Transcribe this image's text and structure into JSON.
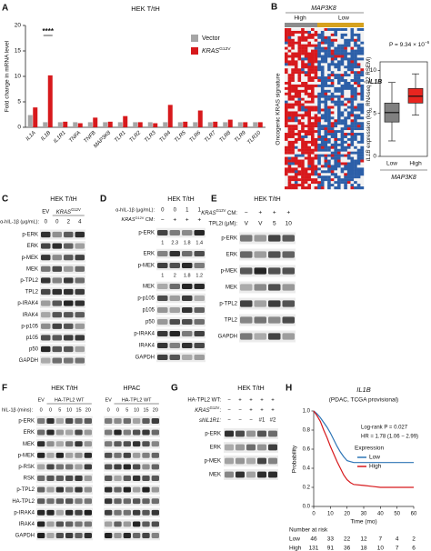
{
  "panel_a": {
    "letter": "A",
    "title": "HEK T/tH",
    "y_label": "Fold change in mRNA level",
    "significance": "****",
    "chart": {
      "type": "bar",
      "categories": [
        "IL1A",
        "IL1B",
        "IL1R1",
        "TNFA",
        "TNFB",
        "MAP3K8",
        "TLR1",
        "TLR2",
        "TLR3",
        "TLR4",
        "TLR5",
        "TLR6",
        "TLR7",
        "TLR8",
        "TLR9",
        "TLR10"
      ],
      "series": [
        {
          "name": "Vector",
          "color": "#a6a6a6",
          "values": [
            2.4,
            1,
            1,
            1,
            1,
            1,
            1,
            1,
            1,
            1,
            1,
            1,
            1,
            1,
            1,
            1
          ]
        },
        {
          "name": "KRAS",
          "name_sup": "G12V",
          "color": "#d7191c",
          "values": [
            3.9,
            10.2,
            1.1,
            0.8,
            1.9,
            1.1,
            2.2,
            1,
            0.8,
            4.4,
            1.1,
            3.3,
            1.1,
            1.5,
            1,
            1
          ]
        }
      ],
      "ylim": [
        0,
        20
      ],
      "yticks": [
        0,
        5,
        10,
        15,
        20
      ]
    }
  },
  "panel_b": {
    "letter": "B",
    "gene": "MAP3K8",
    "groups": [
      "High",
      "Low"
    ],
    "row_label": "IL1B",
    "y_label": "Oncogenic KRAS signature",
    "box": {
      "type": "box",
      "annotation": "P = 9.34 × 10",
      "annotation_sup": "−6",
      "y_label_parts": [
        "IL1B",
        " expression (log",
        "2",
        " RNAseq V2 RSEM)"
      ],
      "x_label": "MAP3K8",
      "categories": [
        "Low",
        "High"
      ],
      "colors": [
        "#808080",
        "#e8251f"
      ],
      "boxes": [
        {
          "whisker_low": 1.8,
          "q1": 4.0,
          "median": 5.1,
          "q3": 6.2,
          "whisker_high": 8.6
        },
        {
          "whisker_low": 4.8,
          "q1": 6.2,
          "median": 7.0,
          "q3": 7.9,
          "whisker_high": 9.6
        }
      ],
      "ylim": [
        0,
        11
      ],
      "yticks": [
        0,
        5,
        10
      ]
    }
  },
  "panel_c": {
    "letter": "C",
    "title": "HEK T/tH",
    "groups": [
      "EV",
      "KRAS"
    ],
    "group_sup": "G12V",
    "treatment_label": "α-hIL-1β (μg/mL):",
    "treatment_values": [
      0,
      0,
      2,
      4
    ],
    "rows": [
      "p-ERK",
      "ERK",
      "p-MEK",
      "MEK",
      "p-TPL2",
      "TPL2",
      "p-IRAK4",
      "IRAK4",
      "p-p105",
      "p105",
      "p50",
      "GAPDH"
    ]
  },
  "panel_d": {
    "letter": "D",
    "title": "HEK T/tH",
    "treatment_label": "α-hIL-1β (μg/mL):",
    "treatment_values": [
      0,
      0,
      1,
      1
    ],
    "cm_label": "KRAS",
    "cm_label_sup": "G12V",
    "cm_label_end": " CM:",
    "cm_values": [
      "−",
      "+",
      "+",
      "+"
    ],
    "rows": [
      "p-ERK",
      "ERK",
      "p-MEK",
      "MEK",
      "p-p105",
      "p105",
      "p50",
      "p-IRAK4",
      "IRAK4",
      "GAPDH"
    ],
    "quant_p_erk": [
      1,
      2.3,
      1.8,
      1.4
    ],
    "quant_p_mek": [
      1,
      2,
      1.8,
      1.2
    ]
  },
  "panel_e": {
    "letter": "E",
    "title": "HEK T/tH",
    "cm_label": "KRAS",
    "cm_label_sup": "G12V",
    "cm_label_end": " CM:",
    "cm_values": [
      "−",
      "+",
      "+",
      "+"
    ],
    "inhibitor_label": "TPL2i (μM):",
    "inhibitor_values": [
      "V",
      "V",
      5,
      10
    ],
    "rows": [
      "p-ERK",
      "ERK",
      "p-MEK",
      "MEK",
      "p-TPL2",
      "TPL2",
      "GAPDH"
    ]
  },
  "panel_f": {
    "letter": "F",
    "cell_lines": [
      "HEK T/tH",
      "HPAC"
    ],
    "groups": [
      "EV",
      "HA-TPL2 WT",
      "EV",
      "HA-TPL2 WT"
    ],
    "treatment_label": "hIL-1β (mins):",
    "treatment_values": [
      [
        0,
        0,
        5,
        10,
        15,
        20
      ],
      [
        0,
        0,
        5,
        10,
        15,
        20
      ]
    ],
    "rows": [
      "p-ERK",
      "ERK",
      "MEK",
      "p-MEK",
      "p-RSK",
      "RSK",
      "p-TPL2",
      "HA-TPL2",
      "p-IRAK4",
      "IRAK4",
      "GAPDH"
    ]
  },
  "panel_g": {
    "letter": "G",
    "title": "HEK T/tH",
    "conditions": [
      {
        "label": "HA-TPL2 WT:",
        "values": [
          "−",
          "+",
          "+",
          "+",
          "+"
        ]
      },
      {
        "label": "KRAS",
        "label_sup": "G12V",
        "label_end": ":",
        "values": [
          "−",
          "−",
          "+",
          "+",
          "+"
        ]
      },
      {
        "label": "shIL1R1:",
        "values": [
          "−",
          "−",
          "−",
          "#1",
          "#2"
        ]
      }
    ],
    "rows": [
      "p-ERK",
      "ERK",
      "p-MEK",
      "MEK"
    ]
  },
  "panel_h": {
    "letter": "H",
    "chart": {
      "type": "line",
      "title": "IL1B",
      "subtitle": "(PDAC, TCGA provisional)",
      "annotations": [
        "Log-rank P = 0.027",
        "HR = 1.78 (1.06 − 2.99)"
      ],
      "legend_title": "Expression",
      "series": [
        {
          "name": "Low",
          "color": "#2e75b6",
          "x": [
            0,
            2,
            4,
            6,
            8,
            10,
            12,
            14,
            16,
            18,
            20,
            22,
            24,
            30,
            40,
            50,
            60
          ],
          "values": [
            1,
            0.97,
            0.93,
            0.88,
            0.83,
            0.77,
            0.7,
            0.63,
            0.57,
            0.52,
            0.48,
            0.47,
            0.46,
            0.46,
            0.46,
            0.46,
            0.46
          ]
        },
        {
          "name": "High",
          "color": "#d7191c",
          "x": [
            0,
            2,
            4,
            6,
            8,
            10,
            12,
            14,
            16,
            18,
            20,
            22,
            24,
            30,
            35,
            40,
            50,
            60
          ],
          "values": [
            1,
            0.95,
            0.89,
            0.8,
            0.72,
            0.63,
            0.55,
            0.47,
            0.4,
            0.33,
            0.28,
            0.25,
            0.23,
            0.22,
            0.21,
            0.2,
            0.2,
            0.2
          ]
        }
      ],
      "x_label": "Time (mo)",
      "y_label": "Probability",
      "xlim": [
        0,
        60
      ],
      "ylim": [
        0,
        1
      ],
      "xticks": [
        0,
        10,
        20,
        30,
        40,
        50,
        60
      ],
      "yticks": [
        {
          "value": 0,
          "label": "0.0"
        },
        0.2,
        0.4,
        0.6,
        0.8,
        {
          "value": 1,
          "label": "1.0"
        }
      ]
    },
    "at_risk_title": "Number at risk",
    "at_risk": [
      [
        46,
        33,
        22,
        12,
        7,
        4,
        2
      ],
      [
        131,
        91,
        36,
        18,
        10,
        7,
        6
      ]
    ]
  }
}
